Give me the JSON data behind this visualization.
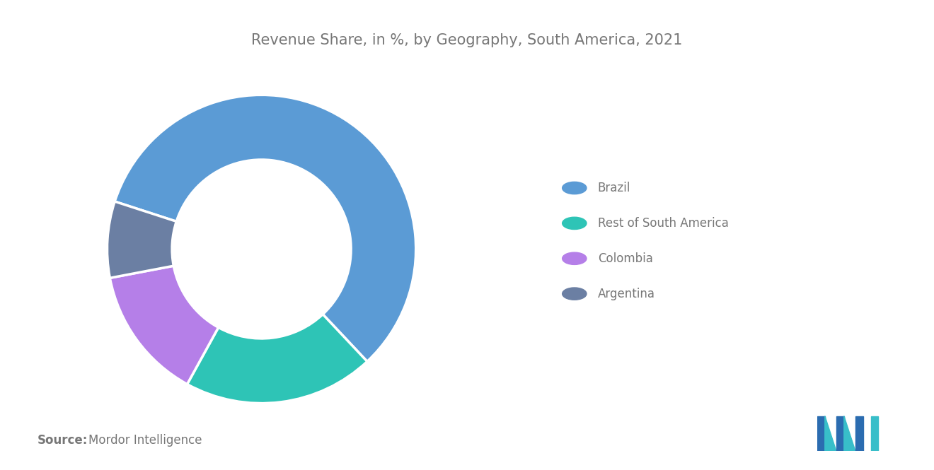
{
  "title": "Revenue Share, in %, by Geography, South America, 2021",
  "labels": [
    "Brazil",
    "Rest of South America",
    "Colombia",
    "Argentina"
  ],
  "values": [
    58,
    20,
    14,
    8
  ],
  "colors": [
    "#5B9BD5",
    "#2EC4B6",
    "#B57FE8",
    "#6B7FA3"
  ],
  "donut_width": 0.42,
  "background_color": "#FFFFFF",
  "title_color": "#777777",
  "title_fontsize": 15,
  "legend_fontsize": 12,
  "legend_text_color": "#777777",
  "source_bold": "Source:",
  "source_text": "Mordor Intelligence",
  "source_fontsize": 12,
  "startangle": 162
}
